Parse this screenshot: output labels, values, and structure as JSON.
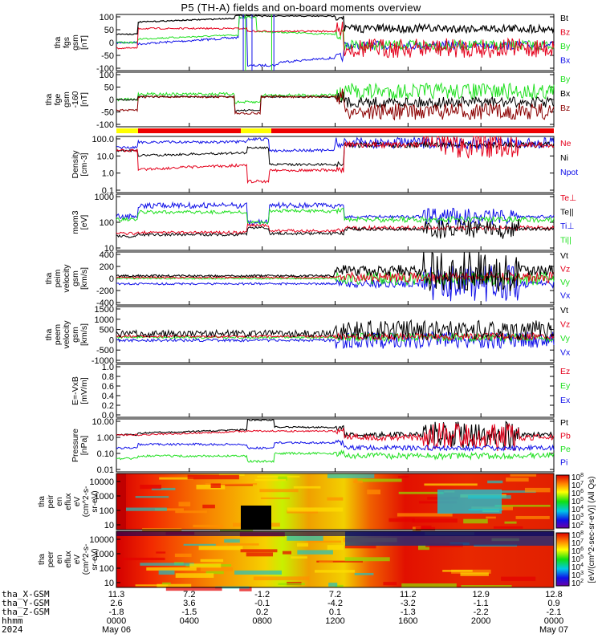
{
  "title": "P5 (TH-A) fields and on-board moments overview",
  "colors": {
    "black": "#000000",
    "red": "#e4001b",
    "green": "#1fe01f",
    "blue": "#1010e8",
    "darkred": "#8b0000",
    "yellow": "#ffff00"
  },
  "chart_data": [
    {
      "type": "line",
      "ylabel": [
        "tha",
        "fgs",
        "gsm",
        "[nT]"
      ],
      "yticks": [
        "100",
        "50",
        "0",
        "-50",
        "-100"
      ],
      "legend": [
        {
          "name": "Bt",
          "color": "black"
        },
        {
          "name": "Bz",
          "color": "red"
        },
        {
          "name": "By",
          "color": "green"
        },
        {
          "name": "Bx",
          "color": "blue"
        }
      ]
    },
    {
      "type": "line",
      "ylabel": [
        "tha",
        "fge",
        "gsm",
        "-160",
        "[nT]"
      ],
      "yticks": [
        "100",
        "50",
        "0",
        "-50",
        "-100"
      ],
      "legend": [
        {
          "name": "By",
          "color": "green"
        },
        {
          "name": "Bx",
          "color": "black"
        },
        {
          "name": "Bz",
          "color": "darkred"
        }
      ]
    },
    {
      "type": "line",
      "ylabel": [
        "Density",
        "[cm-3]"
      ],
      "yticks": [
        "100.0",
        "10.0",
        "1.0",
        "0.1"
      ],
      "legend": [
        {
          "name": "Ne",
          "color": "red"
        },
        {
          "name": "Ni",
          "color": "black"
        },
        {
          "name": "Npot",
          "color": "blue"
        }
      ]
    },
    {
      "type": "line",
      "ylabel": [
        "mom3",
        "[eV]"
      ],
      "yticks": [
        "1000",
        "100",
        "10"
      ],
      "legend": [
        {
          "name": "Te⊥",
          "color": "red"
        },
        {
          "name": "Te||",
          "color": "black"
        },
        {
          "name": "Ti⊥",
          "color": "blue"
        },
        {
          "name": "Ti||",
          "color": "green"
        }
      ]
    },
    {
      "type": "line",
      "ylabel": [
        "tha",
        "peim",
        "velocity",
        "gsm",
        "[km/s]"
      ],
      "yticks": [
        "400",
        "200",
        "0",
        "-200",
        "-400"
      ],
      "legend": [
        {
          "name": "Vt",
          "color": "black"
        },
        {
          "name": "Vz",
          "color": "red"
        },
        {
          "name": "Vy",
          "color": "green"
        },
        {
          "name": "Vx",
          "color": "blue"
        }
      ]
    },
    {
      "type": "line",
      "ylabel": [
        "tha",
        "peem",
        "velocity",
        "gsm",
        "[km/s]"
      ],
      "yticks": [
        "1500",
        "1000",
        "500",
        "0",
        "-500",
        "-1000"
      ],
      "legend": [
        {
          "name": "Vt",
          "color": "black"
        },
        {
          "name": "Vz",
          "color": "red"
        },
        {
          "name": "Vy",
          "color": "green"
        },
        {
          "name": "Vx",
          "color": "blue"
        }
      ]
    },
    {
      "type": "line",
      "ylabel": [
        "E=-VxB",
        "[mV/m]"
      ],
      "yticks": [
        "1.0",
        "0.8",
        "0.6",
        "0.4",
        "0.2",
        "0.0"
      ],
      "legend": [
        {
          "name": "Ez",
          "color": "red"
        },
        {
          "name": "Ey",
          "color": "green"
        },
        {
          "name": "Ex",
          "color": "blue"
        }
      ]
    },
    {
      "type": "line",
      "ylabel": [
        "Pressure",
        "[nPa]"
      ],
      "yticks": [
        "10.00",
        "1.00",
        "0.10",
        "0.01"
      ],
      "legend": [
        {
          "name": "Pt",
          "color": "black"
        },
        {
          "name": "Pb",
          "color": "red"
        },
        {
          "name": "Pe",
          "color": "green"
        },
        {
          "name": "Pi",
          "color": "blue"
        }
      ]
    },
    {
      "type": "heatmap",
      "ylabel": [
        "tha",
        "peir",
        "en",
        "eflux",
        "eV",
        "(cm^2-s-",
        "sr-eV)"
      ],
      "yticks": [
        "10000",
        "1000",
        "100",
        "10"
      ]
    },
    {
      "type": "heatmap",
      "ylabel": [
        "tha",
        "peer",
        "en",
        "eflux",
        "eV",
        "(cm^2-s-",
        "sr-eV)"
      ],
      "yticks": [
        "10000",
        "1000",
        "100",
        "10"
      ]
    }
  ],
  "colorbar": {
    "label": "[eV/(cm^2-sec-sr-eV)] (All Qs)",
    "ticks_top": [
      "10^8",
      "10^7",
      "10^6",
      "10^5",
      "10^4",
      "10^3",
      "10^2"
    ],
    "ticks_bottom": [
      "10^8",
      "10^7",
      "10^6",
      "10^5",
      "10^4",
      "10^3",
      "10^2"
    ]
  },
  "time_axis": {
    "row_labels": [
      "tha_X-GSM",
      "tha_Y-GSM",
      "tha_Z-GSM",
      "hhmm",
      "2024"
    ],
    "columns": [
      {
        "x": "11.3",
        "y": "2.6",
        "z": "-1.8",
        "t": "0000",
        "d": "May 06"
      },
      {
        "x": "7.2",
        "y": "3.6",
        "z": "-1.5",
        "t": "0400",
        "d": ""
      },
      {
        "x": "-1.2",
        "y": "-0.1",
        "z": "0.2",
        "t": "0800",
        "d": ""
      },
      {
        "x": "7.2",
        "y": "-4.2",
        "z": "0.1",
        "t": "1200",
        "d": ""
      },
      {
        "x": "11.2",
        "y": "-3.2",
        "z": "-1.3",
        "t": "1600",
        "d": ""
      },
      {
        "x": "12.9",
        "y": "-1.1",
        "z": "-2.2",
        "t": "2000",
        "d": ""
      },
      {
        "x": "12.8",
        "y": "0.9",
        "z": "-2.1",
        "t": "0000",
        "d": "May 07"
      }
    ]
  }
}
